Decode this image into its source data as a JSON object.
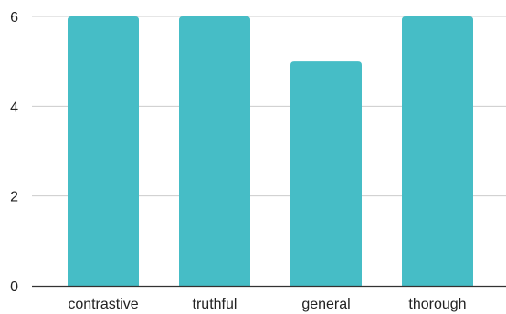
{
  "chart_data": {
    "type": "bar",
    "title": "",
    "xlabel": "",
    "ylabel": "",
    "categories": [
      "contrastive",
      "truthful",
      "general",
      "thorough"
    ],
    "values": [
      6,
      6,
      5,
      6
    ],
    "ylim": [
      0,
      6
    ],
    "yticks": [
      0,
      2,
      4,
      6
    ],
    "grid": true,
    "legend": "none",
    "bar_color": "#46bdc6",
    "gridline_color": "#cccccc",
    "axis_color": "#333333"
  }
}
